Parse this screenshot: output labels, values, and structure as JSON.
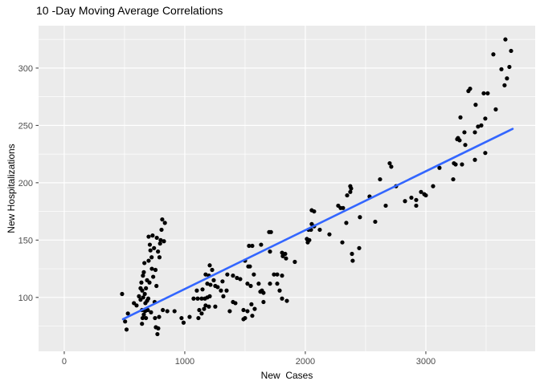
{
  "chart_data": {
    "type": "scatter",
    "title": "10 -Day Moving Average Correlations",
    "xlabel": "New  Cases",
    "ylabel": "New Hospitalizations",
    "x_ticks": [
      0,
      1000,
      2000,
      3000
    ],
    "y_ticks": [
      100,
      150,
      200,
      250,
      300
    ],
    "x_minor_ticks": [
      500,
      1500,
      2500,
      3500
    ],
    "y_minor_ticks": [
      75,
      125,
      175,
      225,
      275,
      325
    ],
    "xlim": [
      -213,
      3907
    ],
    "ylim": [
      53,
      337
    ],
    "grid": true,
    "legend": false,
    "colors": {
      "panel_bg": "#EBEBEB",
      "grid": "#FFFFFF",
      "point": "#000000",
      "trend": "#3366FF",
      "tick_label": "#4D4D4D",
      "tick_mark": "#333333"
    },
    "trend_line": {
      "x1": 487,
      "y1": 81,
      "x2": 3720,
      "y2": 247
    },
    "points": [
      [
        480,
        103
      ],
      [
        505,
        79
      ],
      [
        517,
        72
      ],
      [
        528,
        86
      ],
      [
        578,
        95
      ],
      [
        600,
        93
      ],
      [
        620,
        101
      ],
      [
        633,
        108
      ],
      [
        633,
        98
      ],
      [
        640,
        113
      ],
      [
        645,
        89
      ],
      [
        645,
        77
      ],
      [
        647,
        106
      ],
      [
        650,
        82
      ],
      [
        653,
        119
      ],
      [
        655,
        100
      ],
      [
        660,
        122
      ],
      [
        660,
        85
      ],
      [
        665,
        130
      ],
      [
        668,
        103
      ],
      [
        671,
        88
      ],
      [
        673,
        95
      ],
      [
        678,
        108
      ],
      [
        678,
        82
      ],
      [
        687,
        97
      ],
      [
        687,
        115
      ],
      [
        693,
        89
      ],
      [
        697,
        99
      ],
      [
        700,
        132
      ],
      [
        700,
        153
      ],
      [
        707,
        113
      ],
      [
        710,
        146
      ],
      [
        715,
        141
      ],
      [
        720,
        87
      ],
      [
        725,
        135
      ],
      [
        727,
        125
      ],
      [
        733,
        154
      ],
      [
        738,
        118
      ],
      [
        745,
        143
      ],
      [
        750,
        96
      ],
      [
        753,
        82
      ],
      [
        757,
        124
      ],
      [
        760,
        74
      ],
      [
        765,
        110
      ],
      [
        768,
        152
      ],
      [
        773,
        68
      ],
      [
        778,
        140
      ],
      [
        780,
        73
      ],
      [
        787,
        83
      ],
      [
        790,
        135
      ],
      [
        795,
        147
      ],
      [
        800,
        150
      ],
      [
        807,
        159
      ],
      [
        813,
        168
      ],
      [
        818,
        89
      ],
      [
        827,
        149
      ],
      [
        835,
        165
      ],
      [
        855,
        88
      ],
      [
        915,
        88
      ],
      [
        973,
        82
      ],
      [
        990,
        78
      ],
      [
        1040,
        83
      ],
      [
        1073,
        99
      ],
      [
        1100,
        106
      ],
      [
        1107,
        99
      ],
      [
        1113,
        82
      ],
      [
        1120,
        89
      ],
      [
        1140,
        99
      ],
      [
        1140,
        86
      ],
      [
        1147,
        107
      ],
      [
        1160,
        90
      ],
      [
        1167,
        99
      ],
      [
        1173,
        120
      ],
      [
        1173,
        93
      ],
      [
        1187,
        112
      ],
      [
        1187,
        100
      ],
      [
        1200,
        119
      ],
      [
        1200,
        92
      ],
      [
        1207,
        128
      ],
      [
        1207,
        101
      ],
      [
        1213,
        111
      ],
      [
        1227,
        124
      ],
      [
        1240,
        115
      ],
      [
        1253,
        110
      ],
      [
        1253,
        92
      ],
      [
        1273,
        109
      ],
      [
        1300,
        106
      ],
      [
        1313,
        114
      ],
      [
        1320,
        101
      ],
      [
        1347,
        106
      ],
      [
        1353,
        120
      ],
      [
        1373,
        88
      ],
      [
        1400,
        119
      ],
      [
        1400,
        96
      ],
      [
        1420,
        95
      ],
      [
        1433,
        117
      ],
      [
        1460,
        116
      ],
      [
        1487,
        89
      ],
      [
        1487,
        81
      ],
      [
        1500,
        132
      ],
      [
        1500,
        82
      ],
      [
        1520,
        112
      ],
      [
        1520,
        88
      ],
      [
        1527,
        127
      ],
      [
        1533,
        145
      ],
      [
        1540,
        127
      ],
      [
        1547,
        110
      ],
      [
        1553,
        94
      ],
      [
        1560,
        145
      ],
      [
        1560,
        84
      ],
      [
        1573,
        120
      ],
      [
        1580,
        90
      ],
      [
        1613,
        112
      ],
      [
        1627,
        105
      ],
      [
        1633,
        146
      ],
      [
        1640,
        106
      ],
      [
        1653,
        104
      ],
      [
        1653,
        96
      ],
      [
        1700,
        157
      ],
      [
        1707,
        140
      ],
      [
        1707,
        112
      ],
      [
        1715,
        157
      ],
      [
        1740,
        120
      ],
      [
        1767,
        120
      ],
      [
        1767,
        112
      ],
      [
        1787,
        106
      ],
      [
        1807,
        139
      ],
      [
        1807,
        119
      ],
      [
        1807,
        99
      ],
      [
        1813,
        136
      ],
      [
        1833,
        138
      ],
      [
        1840,
        134
      ],
      [
        1847,
        97
      ],
      [
        1913,
        131
      ],
      [
        2013,
        151
      ],
      [
        2020,
        148
      ],
      [
        2027,
        159
      ],
      [
        2033,
        150
      ],
      [
        2047,
        159
      ],
      [
        2053,
        176
      ],
      [
        2053,
        164
      ],
      [
        2073,
        175
      ],
      [
        2073,
        162
      ],
      [
        2120,
        159
      ],
      [
        2200,
        155
      ],
      [
        2273,
        180
      ],
      [
        2293,
        178
      ],
      [
        2307,
        148
      ],
      [
        2313,
        178
      ],
      [
        2340,
        165
      ],
      [
        2347,
        189
      ],
      [
        2373,
        197
      ],
      [
        2373,
        192
      ],
      [
        2380,
        195
      ],
      [
        2387,
        138
      ],
      [
        2393,
        132
      ],
      [
        2447,
        143
      ],
      [
        2453,
        170
      ],
      [
        2533,
        188
      ],
      [
        2580,
        166
      ],
      [
        2620,
        203
      ],
      [
        2667,
        180
      ],
      [
        2700,
        217
      ],
      [
        2713,
        214
      ],
      [
        2753,
        197
      ],
      [
        2827,
        184
      ],
      [
        2880,
        187
      ],
      [
        2920,
        185
      ],
      [
        2920,
        180
      ],
      [
        2960,
        192
      ],
      [
        2987,
        190
      ],
      [
        3000,
        189
      ],
      [
        3060,
        197
      ],
      [
        3113,
        213
      ],
      [
        3227,
        203
      ],
      [
        3233,
        217
      ],
      [
        3247,
        216
      ],
      [
        3260,
        238
      ],
      [
        3267,
        239
      ],
      [
        3280,
        237
      ],
      [
        3287,
        257
      ],
      [
        3300,
        216
      ],
      [
        3320,
        244
      ],
      [
        3327,
        233
      ],
      [
        3353,
        280
      ],
      [
        3367,
        282
      ],
      [
        3407,
        244
      ],
      [
        3407,
        220
      ],
      [
        3413,
        268
      ],
      [
        3433,
        249
      ],
      [
        3460,
        250
      ],
      [
        3480,
        278
      ],
      [
        3493,
        256
      ],
      [
        3493,
        226
      ],
      [
        3513,
        278
      ],
      [
        3560,
        312
      ],
      [
        3580,
        264
      ],
      [
        3627,
        299
      ],
      [
        3653,
        285
      ],
      [
        3660,
        325
      ],
      [
        3673,
        291
      ],
      [
        3693,
        301
      ],
      [
        3707,
        315
      ]
    ]
  }
}
